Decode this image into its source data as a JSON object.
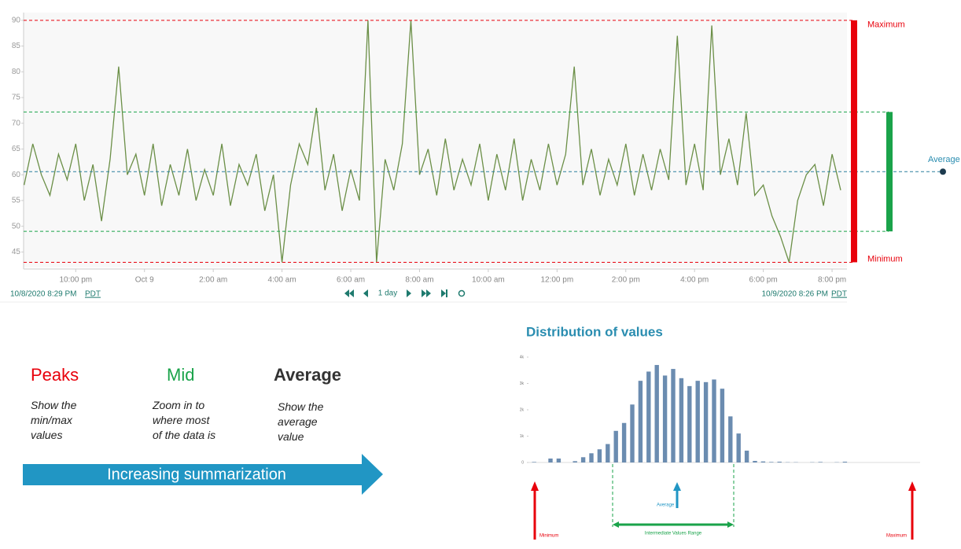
{
  "chart_data": [
    {
      "type": "line",
      "x": [
        "2020-10-08T20:30",
        "2020-10-08T20:45",
        "2020-10-08T21:00",
        "2020-10-08T21:15",
        "2020-10-08T21:30",
        "2020-10-08T21:45",
        "2020-10-08T22:00",
        "2020-10-08T22:15",
        "2020-10-08T22:30",
        "2020-10-08T22:45",
        "2020-10-08T23:00",
        "2020-10-08T23:15",
        "2020-10-08T23:30",
        "2020-10-08T23:45",
        "2020-10-09T00:00",
        "2020-10-09T00:15",
        "2020-10-09T00:30",
        "2020-10-09T00:45",
        "2020-10-09T01:00",
        "2020-10-09T01:15",
        "2020-10-09T01:30",
        "2020-10-09T01:45",
        "2020-10-09T02:00",
        "2020-10-09T02:15",
        "2020-10-09T02:30",
        "2020-10-09T02:45",
        "2020-10-09T03:00",
        "2020-10-09T03:15",
        "2020-10-09T03:30",
        "2020-10-09T03:45",
        "2020-10-09T04:00",
        "2020-10-09T04:15",
        "2020-10-09T04:30",
        "2020-10-09T04:45",
        "2020-10-09T05:00",
        "2020-10-09T05:15",
        "2020-10-09T05:30",
        "2020-10-09T05:45",
        "2020-10-09T06:00",
        "2020-10-09T06:15",
        "2020-10-09T06:30",
        "2020-10-09T06:45",
        "2020-10-09T07:00",
        "2020-10-09T07:15",
        "2020-10-09T07:30",
        "2020-10-09T07:45",
        "2020-10-09T08:00",
        "2020-10-09T08:15",
        "2020-10-09T08:30",
        "2020-10-09T08:45",
        "2020-10-09T09:00",
        "2020-10-09T09:15",
        "2020-10-09T09:30",
        "2020-10-09T09:45",
        "2020-10-09T10:00",
        "2020-10-09T10:15",
        "2020-10-09T10:30",
        "2020-10-09T10:45",
        "2020-10-09T11:00",
        "2020-10-09T11:15",
        "2020-10-09T11:30",
        "2020-10-09T11:45",
        "2020-10-09T12:00",
        "2020-10-09T12:15",
        "2020-10-09T12:30",
        "2020-10-09T12:45",
        "2020-10-09T13:00",
        "2020-10-09T13:15",
        "2020-10-09T13:30",
        "2020-10-09T13:45",
        "2020-10-09T14:00",
        "2020-10-09T14:15",
        "2020-10-09T14:30",
        "2020-10-09T14:45",
        "2020-10-09T15:00",
        "2020-10-09T15:15",
        "2020-10-09T15:30",
        "2020-10-09T15:45",
        "2020-10-09T16:00",
        "2020-10-09T16:15",
        "2020-10-09T16:30",
        "2020-10-09T16:45",
        "2020-10-09T17:00",
        "2020-10-09T17:15",
        "2020-10-09T17:30",
        "2020-10-09T17:45",
        "2020-10-09T18:00",
        "2020-10-09T18:15",
        "2020-10-09T18:30",
        "2020-10-09T18:45",
        "2020-10-09T19:00",
        "2020-10-09T19:15",
        "2020-10-09T19:30",
        "2020-10-09T19:45",
        "2020-10-09T20:00",
        "2020-10-09T20:15"
      ],
      "values": [
        58,
        66,
        60,
        56,
        64,
        59,
        66,
        55,
        62,
        51,
        63,
        81,
        60,
        64,
        56,
        66,
        54,
        62,
        56,
        65,
        55,
        61,
        56,
        66,
        54,
        62,
        58,
        64,
        53,
        60,
        43,
        58,
        66,
        62,
        73,
        57,
        64,
        53,
        61,
        55,
        90,
        43,
        63,
        57,
        66,
        90,
        60,
        65,
        56,
        67,
        57,
        63,
        58,
        66,
        55,
        64,
        57,
        67,
        55,
        63,
        57,
        66,
        58,
        64,
        81,
        58,
        65,
        56,
        63,
        58,
        66,
        56,
        64,
        57,
        65,
        59,
        87,
        58,
        66,
        57,
        89,
        60,
        67,
        58,
        72,
        56,
        58,
        52,
        48,
        43,
        55,
        60,
        62,
        54,
        64,
        57
      ],
      "color": "#6b8f47",
      "xlim": [
        "2020-10-08T20:29",
        "2020-10-09T20:26"
      ],
      "xticks": [
        {
          "value": "2020-10-08T22:00",
          "label": "10:00 pm"
        },
        {
          "value": "2020-10-09T00:00",
          "label": "Oct 9"
        },
        {
          "value": "2020-10-09T02:00",
          "label": "2:00 am"
        },
        {
          "value": "2020-10-09T04:00",
          "label": "4:00 am"
        },
        {
          "value": "2020-10-09T06:00",
          "label": "6:00 am"
        },
        {
          "value": "2020-10-09T08:00",
          "label": "8:00 am"
        },
        {
          "value": "2020-10-09T10:00",
          "label": "10:00 am"
        },
        {
          "value": "2020-10-09T12:00",
          "label": "12:00 pm"
        },
        {
          "value": "2020-10-09T14:00",
          "label": "2:00 pm"
        },
        {
          "value": "2020-10-09T16:00",
          "label": "4:00 pm"
        },
        {
          "value": "2020-10-09T18:00",
          "label": "6:00 pm"
        },
        {
          "value": "2020-10-09T20:00",
          "label": "8:00 pm"
        }
      ],
      "ylim": [
        42,
        91.5
      ],
      "yticks": [
        45,
        50,
        55,
        60,
        65,
        70,
        75,
        80,
        85,
        90
      ],
      "reference_lines": [
        {
          "name": "Maximum",
          "value": 90,
          "color": "#e8000b"
        },
        {
          "value": 72.2,
          "color": "#1aa34a"
        },
        {
          "name": "Average",
          "value": 60.6,
          "color": "#2b7f9e"
        },
        {
          "value": 49,
          "color": "#1aa34a"
        },
        {
          "name": "Minimum",
          "value": 43,
          "color": "#e8000b"
        }
      ],
      "range_start": "10/8/2020 8:29 PM",
      "range_end": "10/9/2020 8:26 PM",
      "timezone": "PDT",
      "zoom": "1 day"
    },
    {
      "type": "bar",
      "title": "Distribution of values",
      "values": [
        20,
        0,
        150,
        150,
        0,
        50,
        200,
        350,
        500,
        700,
        1200,
        1500,
        2200,
        3100,
        3450,
        3700,
        3300,
        3550,
        3200,
        2900,
        3100,
        3050,
        3150,
        2800,
        1750,
        1100,
        450,
        60,
        40,
        20,
        30,
        10,
        10,
        0,
        10,
        20,
        0,
        10,
        30,
        0,
        0,
        0,
        0,
        0,
        0,
        0,
        0,
        0
      ],
      "color": "#6b8cb0",
      "ylim": [
        0,
        4000
      ],
      "yticks": [
        0,
        {
          "value": 1000,
          "label": "1k"
        },
        {
          "value": 2000,
          "label": "2k"
        },
        {
          "value": 3000,
          "label": "3k"
        },
        {
          "value": 4000,
          "label": "4k"
        }
      ],
      "annotations": [
        "Minimum",
        "Average",
        "Intermediate Values Range",
        "Maximum"
      ]
    }
  ],
  "summary": {
    "levels": [
      {
        "title": "Peaks",
        "color": "#e8000b",
        "text": "Show the min/max values"
      },
      {
        "title": "Mid",
        "color": "#1aa34a",
        "text": "Zoom in to where most of the data is"
      },
      {
        "title": "Average",
        "color": "#333333",
        "text": "Show the average value"
      }
    ],
    "arrow": "Increasing summarization"
  }
}
